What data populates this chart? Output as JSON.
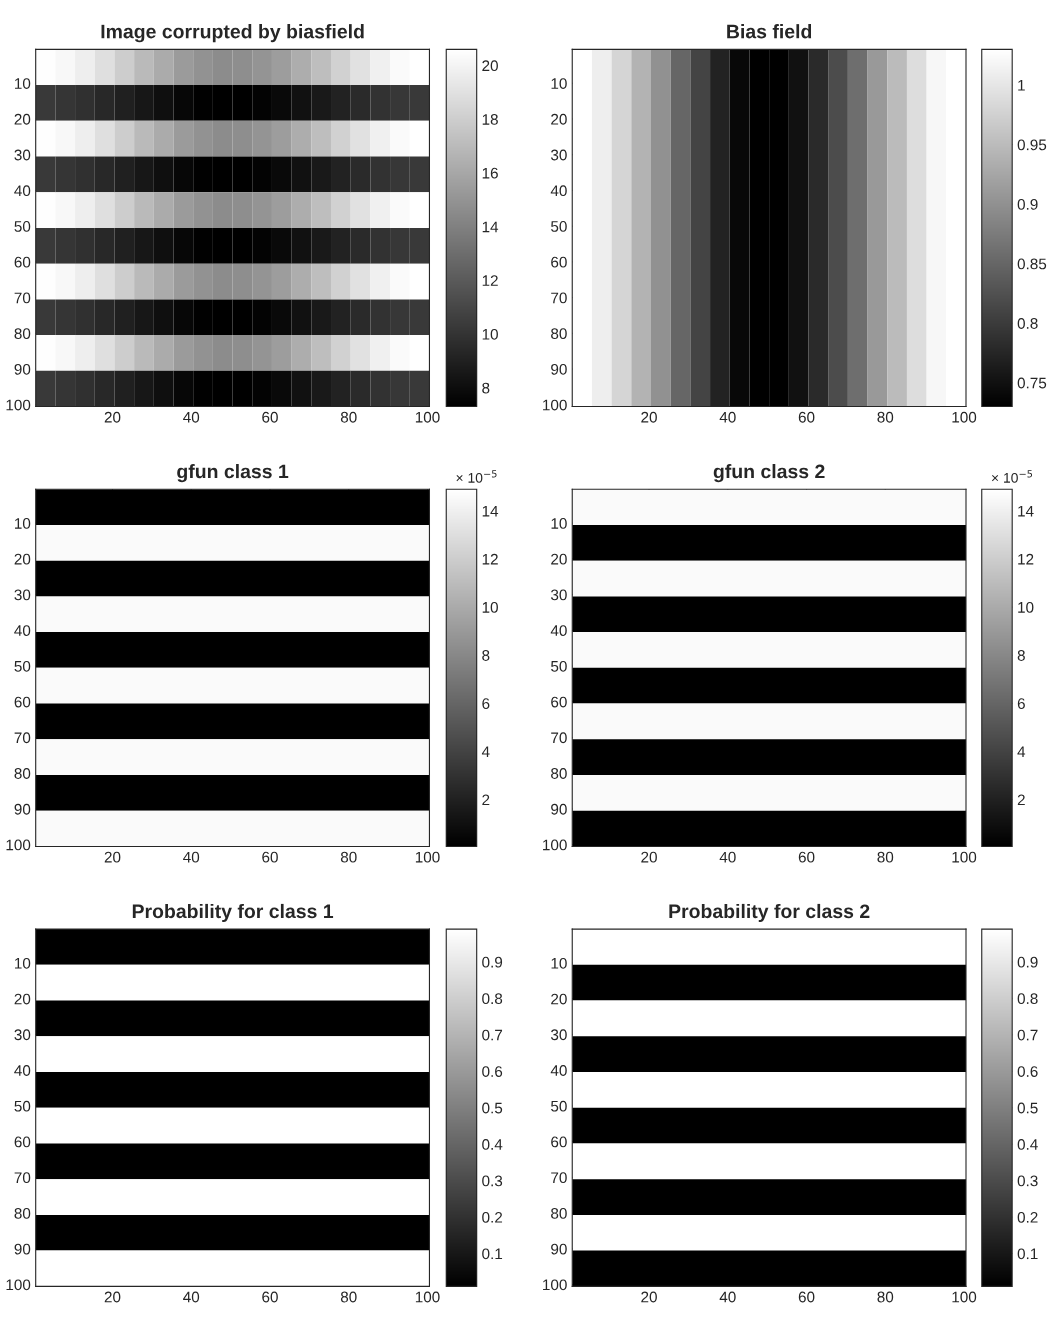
{
  "chart_data": [
    {
      "type": "heatmap",
      "title": "Image corrupted by biasfield",
      "xlim": [
        0.5,
        100.5
      ],
      "ylim": [
        100.5,
        0.5
      ],
      "xticks": [
        20,
        40,
        60,
        80,
        100
      ],
      "yticks": [
        10,
        20,
        30,
        40,
        50,
        60,
        70,
        80,
        90,
        100
      ],
      "clim": [
        7.3,
        20.6
      ],
      "cticks": [
        8,
        10,
        12,
        14,
        16,
        18,
        20
      ],
      "cells": [
        [
          20.5,
          20.2,
          19.7,
          18.9,
          18.0,
          17.0,
          16.2,
          15.4,
          14.9,
          14.6,
          14.7,
          15.0,
          15.5,
          16.3,
          17.2,
          18.2,
          19.0,
          19.8,
          20.3,
          20.6
        ],
        [
          10.3,
          10.1,
          9.8,
          9.4,
          9.0,
          8.5,
          8.1,
          7.7,
          7.4,
          7.3,
          7.3,
          7.5,
          7.8,
          8.2,
          8.6,
          9.1,
          9.5,
          9.9,
          10.2,
          10.3
        ],
        [
          20.5,
          20.2,
          19.7,
          18.9,
          18.0,
          17.0,
          16.2,
          15.4,
          14.9,
          14.6,
          14.7,
          15.0,
          15.5,
          16.3,
          17.2,
          18.2,
          19.0,
          19.8,
          20.3,
          20.6
        ],
        [
          10.3,
          10.1,
          9.8,
          9.4,
          9.0,
          8.5,
          8.1,
          7.7,
          7.4,
          7.3,
          7.3,
          7.5,
          7.8,
          8.2,
          8.6,
          9.1,
          9.5,
          9.9,
          10.2,
          10.3
        ],
        [
          20.5,
          20.2,
          19.7,
          18.9,
          18.0,
          17.0,
          16.2,
          15.4,
          14.9,
          14.6,
          14.7,
          15.0,
          15.5,
          16.3,
          17.2,
          18.2,
          19.0,
          19.8,
          20.3,
          20.6
        ],
        [
          10.3,
          10.1,
          9.8,
          9.4,
          9.0,
          8.5,
          8.1,
          7.7,
          7.4,
          7.3,
          7.3,
          7.5,
          7.8,
          8.2,
          8.6,
          9.1,
          9.5,
          9.9,
          10.2,
          10.3
        ],
        [
          20.5,
          20.2,
          19.7,
          18.9,
          18.0,
          17.0,
          16.2,
          15.4,
          14.9,
          14.6,
          14.7,
          15.0,
          15.5,
          16.3,
          17.2,
          18.2,
          19.0,
          19.8,
          20.3,
          20.6
        ],
        [
          10.3,
          10.1,
          9.8,
          9.4,
          9.0,
          8.5,
          8.1,
          7.7,
          7.4,
          7.3,
          7.3,
          7.5,
          7.8,
          8.2,
          8.6,
          9.1,
          9.5,
          9.9,
          10.2,
          10.3
        ],
        [
          20.5,
          20.2,
          19.7,
          18.9,
          18.0,
          17.0,
          16.2,
          15.4,
          14.9,
          14.6,
          14.7,
          15.0,
          15.5,
          16.3,
          17.2,
          18.2,
          19.0,
          19.8,
          20.3,
          20.6
        ],
        [
          10.3,
          10.1,
          9.8,
          9.4,
          9.0,
          8.5,
          8.1,
          7.7,
          7.4,
          7.3,
          7.3,
          7.5,
          7.8,
          8.2,
          8.6,
          9.1,
          9.5,
          9.9,
          10.2,
          10.3
        ]
      ]
    },
    {
      "type": "heatmap",
      "title": "Bias field",
      "xlim": [
        0.5,
        100.5
      ],
      "ylim": [
        100.5,
        0.5
      ],
      "xticks": [
        20,
        40,
        60,
        80,
        100
      ],
      "yticks": [
        10,
        20,
        30,
        40,
        50,
        60,
        70,
        80,
        90,
        100
      ],
      "clim": [
        0.73,
        1.03
      ],
      "cticks": [
        0.75,
        0.8,
        0.85,
        0.9,
        0.95,
        1
      ],
      "cells": [
        [
          1.03,
          1.01,
          0.98,
          0.94,
          0.9,
          0.85,
          0.81,
          0.77,
          0.74,
          0.73,
          0.73,
          0.75,
          0.78,
          0.82,
          0.86,
          0.91,
          0.95,
          0.99,
          1.02,
          1.03
        ]
      ]
    },
    {
      "type": "heatmap",
      "title": "gfun class 1",
      "xlim": [
        0.5,
        100.5
      ],
      "ylim": [
        100.5,
        0.5
      ],
      "xticks": [
        20,
        40,
        60,
        80,
        100
      ],
      "yticks": [
        10,
        20,
        30,
        40,
        50,
        60,
        70,
        80,
        90,
        100
      ],
      "clim": [
        0.05,
        14.9
      ],
      "cticks": [
        2,
        4,
        6,
        8,
        10,
        12,
        14
      ],
      "annotations": [
        "× 10$^{−5}$"
      ],
      "cells": [
        [
          0.05
        ],
        [
          14.6
        ],
        [
          0.05
        ],
        [
          14.6
        ],
        [
          0.05
        ],
        [
          14.6
        ],
        [
          0.05
        ],
        [
          14.6
        ],
        [
          0.05
        ],
        [
          14.6
        ]
      ]
    },
    {
      "type": "heatmap",
      "title": "gfun class 2",
      "xlim": [
        0.5,
        100.5
      ],
      "ylim": [
        100.5,
        0.5
      ],
      "xticks": [
        20,
        40,
        60,
        80,
        100
      ],
      "yticks": [
        10,
        20,
        30,
        40,
        50,
        60,
        70,
        80,
        90,
        100
      ],
      "clim": [
        0.05,
        14.9
      ],
      "cticks": [
        2,
        4,
        6,
        8,
        10,
        12,
        14
      ],
      "annotations": [
        "× 10$^{−5}$"
      ],
      "cells": [
        [
          14.6
        ],
        [
          0.05
        ],
        [
          14.6
        ],
        [
          0.05
        ],
        [
          14.6
        ],
        [
          0.05
        ],
        [
          14.6
        ],
        [
          0.05
        ],
        [
          14.6
        ],
        [
          0.05
        ]
      ]
    },
    {
      "type": "heatmap",
      "title": "Probability for class 1",
      "xlim": [
        0.5,
        100.5
      ],
      "ylim": [
        100.5,
        0.5
      ],
      "xticks": [
        20,
        40,
        60,
        80,
        100
      ],
      "yticks": [
        10,
        20,
        30,
        40,
        50,
        60,
        70,
        80,
        90,
        100
      ],
      "clim": [
        0.01,
        0.99
      ],
      "cticks": [
        0.1,
        0.2,
        0.3,
        0.4,
        0.5,
        0.6,
        0.7,
        0.8,
        0.9
      ],
      "cells": [
        [
          0.01
        ],
        [
          0.99
        ],
        [
          0.01
        ],
        [
          0.99
        ],
        [
          0.01
        ],
        [
          0.99
        ],
        [
          0.01
        ],
        [
          0.99
        ],
        [
          0.01
        ],
        [
          0.99
        ]
      ]
    },
    {
      "type": "heatmap",
      "title": "Probability for class 2",
      "xlim": [
        0.5,
        100.5
      ],
      "ylim": [
        100.5,
        0.5
      ],
      "xticks": [
        20,
        40,
        60,
        80,
        100
      ],
      "yticks": [
        10,
        20,
        30,
        40,
        50,
        60,
        70,
        80,
        90,
        100
      ],
      "clim": [
        0.01,
        0.99
      ],
      "cticks": [
        0.1,
        0.2,
        0.3,
        0.4,
        0.5,
        0.6,
        0.7,
        0.8,
        0.9
      ],
      "cells": [
        [
          0.99
        ],
        [
          0.01
        ],
        [
          0.99
        ],
        [
          0.01
        ],
        [
          0.99
        ],
        [
          0.01
        ],
        [
          0.99
        ],
        [
          0.01
        ],
        [
          0.99
        ],
        [
          0.01
        ]
      ]
    }
  ]
}
